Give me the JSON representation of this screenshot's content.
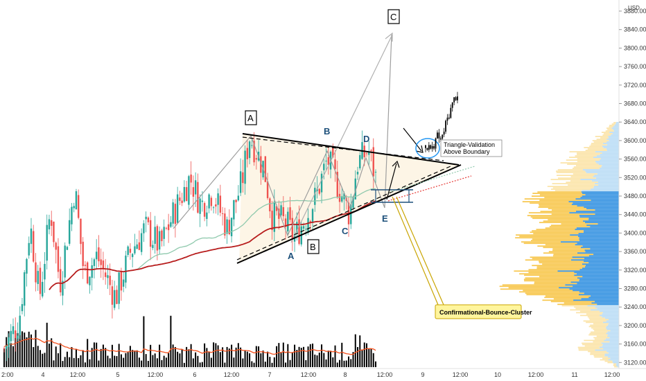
{
  "currency": "USD",
  "chart_data": {
    "type": "candlestick",
    "y_axis": {
      "side": "right",
      "ticks": [
        "3880.00",
        "3840.00",
        "3800.00",
        "3760.00",
        "3720.00",
        "3680.00",
        "3640.00",
        "3600.00",
        "3560.00",
        "3520.00",
        "3480.00",
        "3440.00",
        "3400.00",
        "3360.00",
        "3320.00",
        "3280.00",
        "3240.00",
        "3200.00",
        "3160.00",
        "3120.00"
      ],
      "ylim": [
        3110,
        3900
      ],
      "current_price_label": "3880.00"
    },
    "x_axis": {
      "ticks": [
        "2:00",
        "4",
        "12:00",
        "5",
        "12:00",
        "6",
        "12:00",
        "7",
        "12:00",
        "8",
        "12:00",
        "9",
        "12:00",
        "10",
        "12:00",
        "11",
        "12:00"
      ]
    },
    "price_anchors": [
      {
        "t": 0,
        "v": 3150
      },
      {
        "t": 0.04,
        "v": 3210
      },
      {
        "t": 0.07,
        "v": 3420
      },
      {
        "t": 0.095,
        "v": 3260
      },
      {
        "t": 0.125,
        "v": 3450
      },
      {
        "t": 0.15,
        "v": 3290
      },
      {
        "t": 0.19,
        "v": 3500
      },
      {
        "t": 0.215,
        "v": 3310
      },
      {
        "t": 0.25,
        "v": 3350
      },
      {
        "t": 0.3,
        "v": 3260
      },
      {
        "t": 0.34,
        "v": 3360
      },
      {
        "t": 0.38,
        "v": 3410
      },
      {
        "t": 0.42,
        "v": 3370
      },
      {
        "t": 0.46,
        "v": 3450
      },
      {
        "t": 0.5,
        "v": 3520
      },
      {
        "t": 0.53,
        "v": 3460
      },
      {
        "t": 0.56,
        "v": 3490
      },
      {
        "t": 0.6,
        "v": 3410
      },
      {
        "t": 0.64,
        "v": 3510
      },
      {
        "t": 0.66,
        "v": 3610
      },
      {
        "t": 0.7,
        "v": 3540
      },
      {
        "t": 0.72,
        "v": 3440
      },
      {
        "t": 0.76,
        "v": 3420
      },
      {
        "t": 0.78,
        "v": 3390
      },
      {
        "t": 0.81,
        "v": 3430
      },
      {
        "t": 0.84,
        "v": 3480
      },
      {
        "t": 0.87,
        "v": 3560
      },
      {
        "t": 0.9,
        "v": 3500
      },
      {
        "t": 0.93,
        "v": 3440
      },
      {
        "t": 0.95,
        "v": 3550
      },
      {
        "t": 0.98,
        "v": 3580
      },
      {
        "t": 1,
        "v": 3520
      }
    ],
    "projection": [
      {
        "t": 0,
        "v": 3590
      },
      {
        "t": 0.2,
        "v": 3580
      },
      {
        "t": 0.35,
        "v": 3610
      },
      {
        "t": 0.5,
        "v": 3600
      },
      {
        "t": 0.65,
        "v": 3640
      },
      {
        "t": 0.8,
        "v": 3670
      },
      {
        "t": 0.9,
        "v": 3690
      },
      {
        "t": 1,
        "v": 3700
      }
    ],
    "volume_profile": {
      "top": 3640,
      "bottom": 3110,
      "shape": [
        {
          "v": 3640,
          "w": 0.05
        },
        {
          "v": 3600,
          "w": 0.25
        },
        {
          "v": 3570,
          "w": 0.45
        },
        {
          "v": 3540,
          "w": 0.5
        },
        {
          "v": 3500,
          "w": 0.6
        },
        {
          "v": 3480,
          "w": 0.85
        },
        {
          "v": 3440,
          "w": 0.75
        },
        {
          "v": 3420,
          "w": 0.65
        },
        {
          "v": 3400,
          "w": 0.95
        },
        {
          "v": 3360,
          "w": 0.7
        },
        {
          "v": 3320,
          "w": 0.85
        },
        {
          "v": 3300,
          "w": 0.9
        },
        {
          "v": 3280,
          "w": 1.0
        },
        {
          "v": 3250,
          "w": 0.6
        },
        {
          "v": 3220,
          "w": 0.3
        },
        {
          "v": 3180,
          "w": 0.25
        },
        {
          "v": 3150,
          "w": 0.35
        },
        {
          "v": 3120,
          "w": 0.1
        }
      ]
    },
    "wave_labels": [
      "A",
      "B",
      "C",
      "D",
      "E",
      "A",
      "B",
      "C"
    ],
    "boxed_labels": [
      "A",
      "B",
      "C"
    ],
    "annotations": {
      "triangle_validation": [
        "Triangle-Validation",
        "Above Boundary"
      ],
      "bounce_cluster": "Confirmational-Bounce-Cluster"
    },
    "colors": {
      "up": "#26a69a",
      "down": "#ef5350",
      "ma_long": "#b71c1c",
      "ma_short": "#8fc9ad",
      "volume_ma": "#f4511e",
      "volume": "#000000",
      "triangle_fill": "#fdf3e0",
      "profile_gold": "#f7c548",
      "profile_blue": "#2f8fe0",
      "profile_light_gold": "#fbe3a6",
      "profile_light_blue": "#b9dcf5",
      "annotation_box": "#fff59d",
      "wave_text": "#1c4f7a",
      "zigzag": "#9e9e9e",
      "circle": "#2196f3"
    }
  }
}
